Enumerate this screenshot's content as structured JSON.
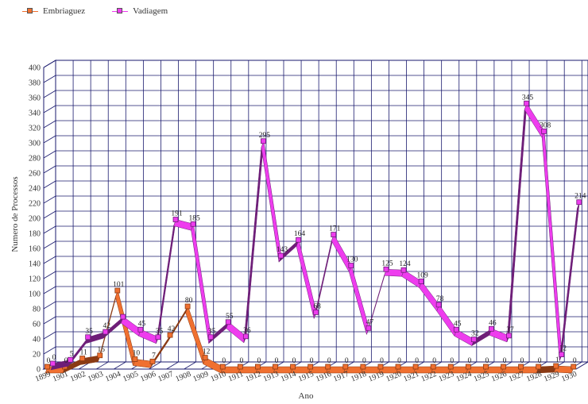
{
  "chart_data": {
    "type": "line",
    "title": "",
    "xlabel": "Ano",
    "ylabel": "Numero de Processos",
    "ylim": [
      0,
      400
    ],
    "yticks": [
      0,
      20,
      40,
      60,
      80,
      100,
      120,
      140,
      160,
      180,
      200,
      220,
      240,
      260,
      280,
      300,
      320,
      340,
      360,
      380,
      400
    ],
    "grid": true,
    "legend": "top-left",
    "categories": [
      "1899",
      "1901",
      "1902",
      "1903",
      "1904",
      "1905",
      "1906",
      "1907",
      "1908",
      "1909",
      "1910",
      "1911",
      "1912",
      "1913",
      "1914",
      "1915",
      "1916",
      "1917",
      "1918",
      "1919",
      "1920",
      "1921",
      "1922",
      "1923",
      "1924",
      "1925",
      "1926",
      "1927",
      "1928",
      "1929",
      "1930"
    ],
    "series": [
      {
        "name": "Embriaguez",
        "color": "#f07030",
        "side_color": "#8a3a14",
        "values": [
          0,
          0,
          11,
          15,
          101,
          10,
          7,
          42,
          80,
          12,
          0,
          0,
          0,
          0,
          0,
          0,
          0,
          0,
          0,
          0,
          0,
          0,
          0,
          0,
          0,
          0,
          0,
          0,
          0,
          1,
          0
        ],
        "labels": [
          "0",
          "0",
          "11",
          "15",
          "101",
          "10",
          "7",
          "42",
          "80",
          "12",
          "0",
          "0",
          "0",
          "0",
          "0",
          "0",
          "0",
          "0",
          "0",
          "0",
          "0",
          "0",
          "0",
          "0",
          "0",
          "0",
          "0",
          "0",
          "0",
          "1",
          "0"
        ]
      },
      {
        "name": "Vadiagem",
        "color": "#ee3cee",
        "side_color": "#6e1e78",
        "values": [
          0,
          5,
          35,
          42,
          62,
          45,
          35,
          191,
          185,
          35,
          55,
          36,
          295,
          143,
          164,
          68,
          171,
          130,
          47,
          125,
          124,
          109,
          78,
          45,
          32,
          46,
          37,
          345,
          308,
          12,
          214
        ],
        "labels": [
          "0",
          "5",
          "35",
          "42",
          "",
          "45",
          "35",
          "191",
          "185",
          "35",
          "55",
          "36",
          "295",
          "143",
          "164",
          "68",
          "171",
          "130",
          "47",
          "125",
          "124",
          "109",
          "78",
          "45",
          "32",
          "46",
          "37",
          "345",
          "308",
          "12",
          "214"
        ]
      }
    ]
  }
}
